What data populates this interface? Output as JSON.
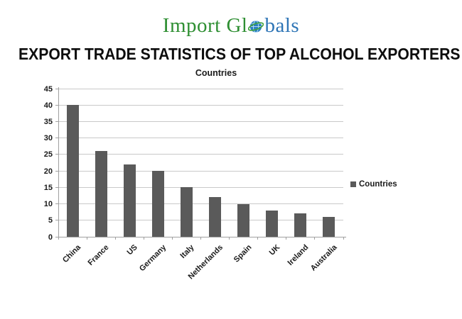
{
  "logo": {
    "text_primary": "Import Gl",
    "text_secondary": "bals",
    "full_name": "Import Globals",
    "color_primary": "#2f8f33",
    "color_secondary": "#2e75b6"
  },
  "title": "EXPORT TRADE STATISTICS OF TOP ALCOHOL EXPORTERS",
  "chart_data": {
    "type": "bar",
    "title": "Countries",
    "categories": [
      "China",
      "France",
      "US",
      "Germany",
      "Italy",
      "Netherlands",
      "Spain",
      "UK",
      "Ireland",
      "Australia"
    ],
    "values": [
      40,
      26,
      22,
      20,
      15,
      12,
      10,
      8,
      7,
      6
    ],
    "series": [
      {
        "name": "Countries",
        "values": [
          40,
          26,
          22,
          20,
          15,
          12,
          10,
          8,
          7,
          6
        ]
      }
    ],
    "xlabel": "",
    "ylabel": "",
    "ylim": [
      0,
      45
    ],
    "ytick_step": 5,
    "grid": true,
    "legend": {
      "label": "Countries",
      "position": "right"
    },
    "bar_color": "#5a5a5a",
    "gridline_color": "#c9c9c9",
    "axis_color": "#a0a0a0"
  }
}
